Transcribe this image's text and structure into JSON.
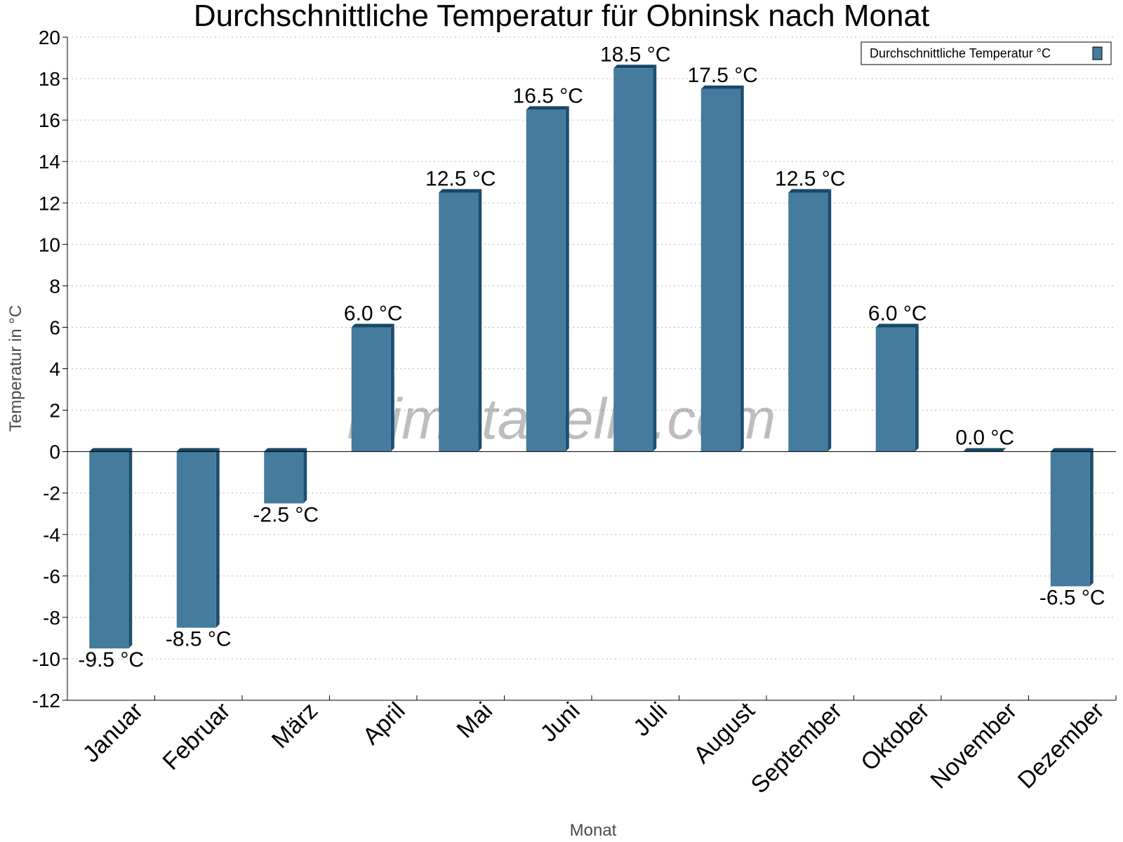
{
  "chart_data": {
    "type": "bar",
    "title": "Durchschnittliche Temperatur für Obninsk nach Monat",
    "xlabel": "Monat",
    "ylabel": "Temperatur in °C",
    "categories": [
      "Januar",
      "Februar",
      "März",
      "April",
      "Mai",
      "Juni",
      "Juli",
      "August",
      "September",
      "Oktober",
      "November",
      "Dezember"
    ],
    "series": [
      {
        "name": "Durchschnittliche Temperatur °C",
        "values": [
          -9.5,
          -8.5,
          -2.5,
          6.0,
          12.5,
          16.5,
          18.5,
          17.5,
          12.5,
          6.0,
          0.0,
          -6.5
        ],
        "labels": [
          "-9.5 °C",
          "-8.5 °C",
          "-2.5 °C",
          "6.0 °C",
          "12.5 °C",
          "16.5 °C",
          "18.5 °C",
          "17.5 °C",
          "12.5 °C",
          "6.0 °C",
          "0.0 °C",
          "-6.5 °C"
        ]
      }
    ],
    "ylim": [
      -12,
      20
    ],
    "yticks": [
      -12,
      -10,
      -8,
      -6,
      -4,
      -2,
      0,
      2,
      4,
      6,
      8,
      10,
      12,
      14,
      16,
      18,
      20
    ],
    "grid": true,
    "legend_position": "top-right",
    "colors": {
      "bar": "#457b9d",
      "bar_side": "#1d4e6f",
      "bar_top": "#174766"
    },
    "watermark": "klimatabelle.com"
  }
}
